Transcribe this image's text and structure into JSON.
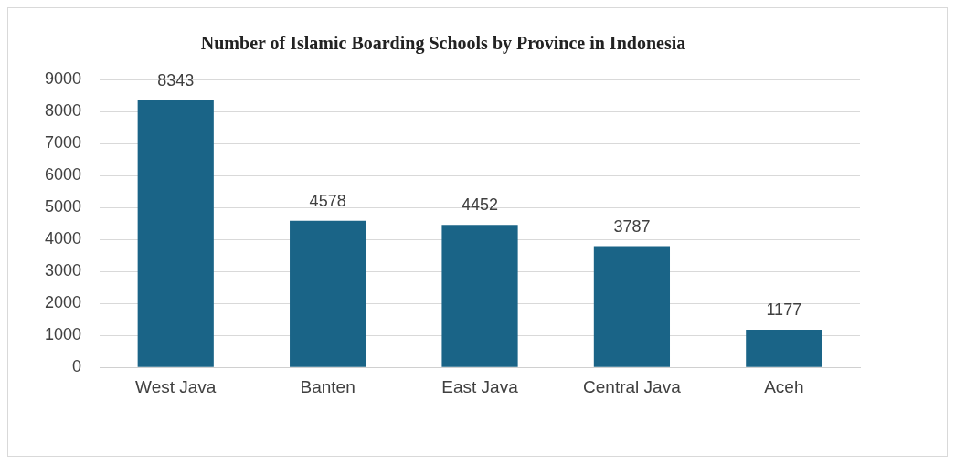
{
  "chart_data": {
    "type": "bar",
    "title": "Number of Islamic Boarding Schools by Province in Indonesia",
    "categories": [
      "West Java",
      "Banten",
      "East Java",
      "Central Java",
      "Aceh"
    ],
    "values": [
      8343,
      4578,
      4452,
      3787,
      1177
    ],
    "color": "#1a6487",
    "ylim": [
      0,
      9000
    ],
    "yticks": [
      0,
      1000,
      2000,
      3000,
      4000,
      5000,
      6000,
      7000,
      8000,
      9000
    ],
    "grid": "y",
    "data_labels": true,
    "legend": false
  }
}
